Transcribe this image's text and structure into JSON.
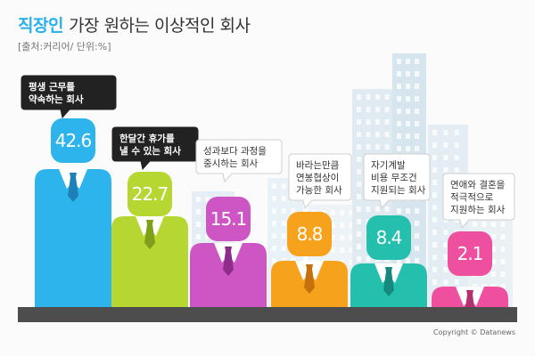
{
  "header": {
    "title_highlight": "직장인",
    "title_rest": "가장 원하는 이상적인 회사",
    "source": "[출처:커리어/ 단위:%]"
  },
  "footer": {
    "copyright": "Copyright © Datanews"
  },
  "colors": {
    "highlight": "#29b0ea",
    "base": "#4d4d4d",
    "shirt": "#ffffff",
    "tie": "#1f7fb3"
  },
  "chart_data": {
    "type": "bar",
    "title": "직장인 가장 원하는 이상적인 회사",
    "unit": "%",
    "categories": [
      "평생 근무를 약속하는 회사",
      "한달간 휴가를 낼 수 있는 회사",
      "성과보다 과정을 중시하는 회사",
      "바라는만큼 연봉협상이 가능한 회사",
      "자기계발 비용 무조건 지원되는 회사",
      "연애와 결혼을 적극적으로 지원하는 회사"
    ],
    "values": [
      42.6,
      22.7,
      15.1,
      8.8,
      8.4,
      2.1
    ],
    "value_labels": [
      "42.6",
      "22.7",
      "15.1",
      "8.8",
      "8.4",
      "2.1"
    ],
    "label_lines": [
      [
        "평생 근무를",
        "약속하는 회사"
      ],
      [
        "한달간 휴가를",
        "낼 수 있는 회사"
      ],
      [
        "성과보다 과정을",
        "중시하는 회사"
      ],
      [
        "바라는만큼",
        "연봉협상이",
        "가능한 회사"
      ],
      [
        "자기계발",
        "비용 무조건",
        "지원되는 회사"
      ],
      [
        "연애와 결혼을",
        "적극적으로",
        "지원하는 회사"
      ]
    ],
    "colors": [
      "#2db4ec",
      "#b6d631",
      "#ce56c4",
      "#f7a21c",
      "#25bfae",
      "#ee4f9f"
    ],
    "tie_colors": [
      "#1d80b6",
      "#7f9f1b",
      "#8f2c8b",
      "#c4700d",
      "#15897c",
      "#b4306f"
    ],
    "label_style": [
      "dark",
      "dark",
      "light",
      "light",
      "light",
      "light"
    ],
    "ylim": [
      0,
      45
    ],
    "grid": false,
    "legend": "none"
  }
}
